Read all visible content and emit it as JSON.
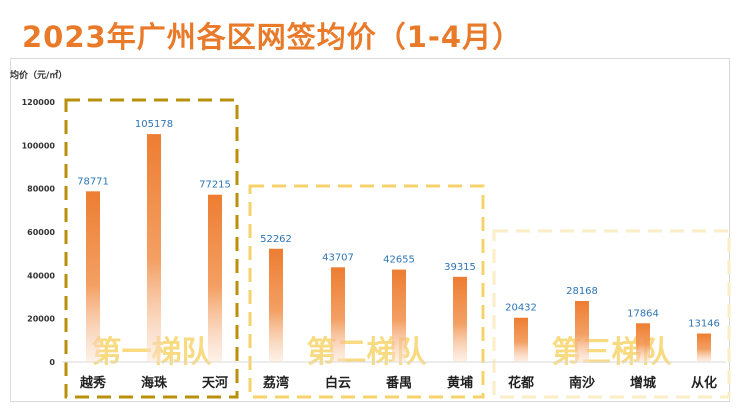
{
  "title": "2023年广州各区网签均价（1-4月）",
  "chart_data": {
    "type": "bar",
    "ylabel": "均价（元/㎡）",
    "ylim": [
      0,
      120000
    ],
    "yticks": [
      0,
      20000,
      40000,
      60000,
      80000,
      100000,
      120000
    ],
    "categories": [
      "越秀",
      "海珠",
      "天河",
      "荔湾",
      "白云",
      "番禺",
      "黄埔",
      "花都",
      "南沙",
      "增城",
      "从化"
    ],
    "values": [
      78771,
      105178,
      77215,
      52262,
      43707,
      42655,
      39315,
      20432,
      28168,
      17864,
      13146
    ],
    "groups": [
      {
        "label": "第一梯队",
        "members": [
          "越秀",
          "海珠",
          "天河"
        ],
        "color": "#b8900a"
      },
      {
        "label": "第二梯队",
        "members": [
          "荔湾",
          "白云",
          "番禺",
          "黄埔"
        ],
        "color": "#f6d36a"
      },
      {
        "label": "第三梯队",
        "members": [
          "花都",
          "南沙",
          "增城",
          "从化"
        ],
        "color": "#faeec6"
      }
    ],
    "bar_color": "#ed7d31",
    "data_label_color": "#2e75b6",
    "grid": false
  }
}
